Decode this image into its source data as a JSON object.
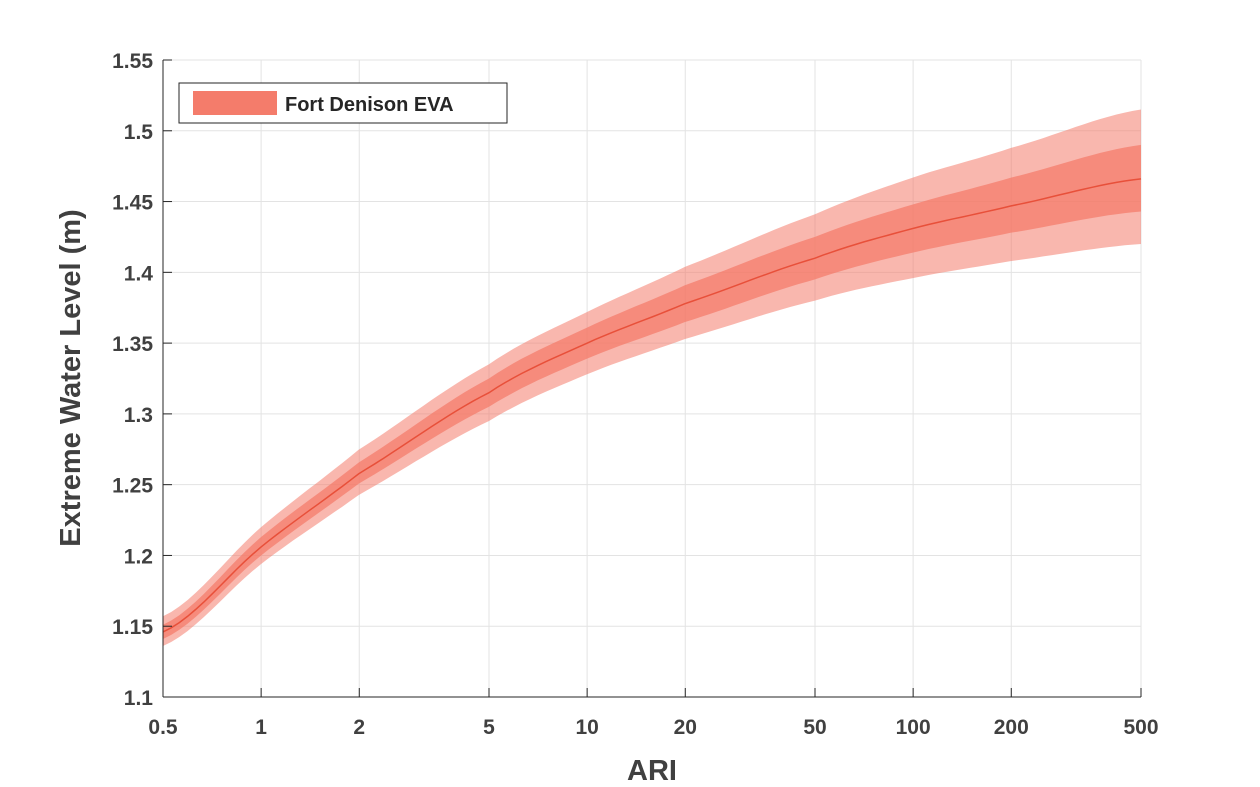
{
  "chart_data": {
    "type": "line",
    "title": "",
    "xlabel": "ARI",
    "ylabel": "Extreme Water Level (m)",
    "x_scale": "log",
    "xlim": [
      0.5,
      500
    ],
    "ylim": [
      1.1,
      1.55
    ],
    "grid": true,
    "legend_position": "top-left",
    "x_ticks": [
      0.5,
      1,
      2,
      5,
      10,
      20,
      50,
      100,
      200,
      500
    ],
    "x_tick_labels": [
      "0.5",
      "1",
      "2",
      "5",
      "10",
      "20",
      "50",
      "100",
      "200",
      "500"
    ],
    "y_ticks": [
      1.1,
      1.15,
      1.2,
      1.25,
      1.3,
      1.35,
      1.4,
      1.45,
      1.5,
      1.55
    ],
    "y_tick_labels": [
      "1.1",
      "1.15",
      "1.2",
      "1.25",
      "1.3",
      "1.35",
      "1.4",
      "1.45",
      "1.5",
      "1.55"
    ],
    "series": [
      {
        "name": "Fort Denison EVA",
        "color": "#e8503a",
        "band_color": "#f47c6b",
        "x": [
          0.5,
          1,
          2,
          5,
          10,
          20,
          50,
          100,
          200,
          500
        ],
        "y": [
          1.146,
          1.206,
          1.258,
          1.315,
          1.35,
          1.378,
          1.41,
          1.431,
          1.447,
          1.466
        ],
        "upper": [
          1.157,
          1.22,
          1.275,
          1.335,
          1.372,
          1.404,
          1.441,
          1.467,
          1.488,
          1.515
        ],
        "lower": [
          1.136,
          1.194,
          1.243,
          1.295,
          1.328,
          1.353,
          1.38,
          1.396,
          1.408,
          1.42
        ],
        "inner_upper": [
          1.151,
          1.213,
          1.266,
          1.325,
          1.361,
          1.391,
          1.425,
          1.448,
          1.467,
          1.49
        ],
        "inner_lower": [
          1.141,
          1.2,
          1.251,
          1.305,
          1.339,
          1.365,
          1.395,
          1.414,
          1.428,
          1.443
        ]
      }
    ]
  }
}
